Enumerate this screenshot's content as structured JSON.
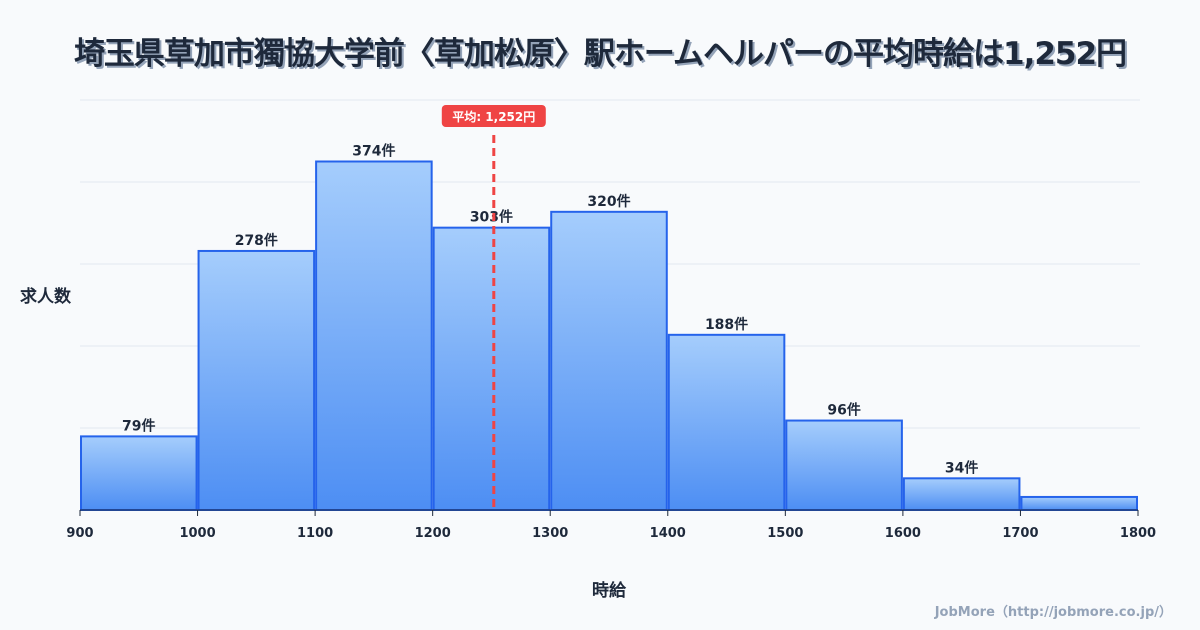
{
  "title": "埼玉県草加市獨協大学前〈草加松原〉駅ホームヘルパーの平均時給は1,252円",
  "credit": "JobMore（http://jobmore.co.jp/）",
  "chart_data": {
    "type": "bar",
    "title": "埼玉県草加市獨協大学前〈草加松原〉駅ホームヘルパーの平均時給は1,252円",
    "xlabel": "時給",
    "ylabel": "求人数",
    "bins": [
      900,
      1000,
      1100,
      1200,
      1300,
      1400,
      1500,
      1600,
      1700,
      1800
    ],
    "x_ticks": [
      "900",
      "1000",
      "1100",
      "1200",
      "1300",
      "1400",
      "1500",
      "1600",
      "1700",
      "1800"
    ],
    "values": [
      79,
      278,
      374,
      303,
      320,
      188,
      96,
      34,
      14
    ],
    "labels": [
      "79件",
      "278件",
      "374件",
      "303件",
      "320件",
      "188件",
      "96件",
      "34件",
      ""
    ],
    "ylim": [
      0,
      440
    ],
    "grid": true,
    "mean": {
      "value": 1252,
      "label": "平均: 1,252円"
    },
    "colors": {
      "bar_top": "#a5cdfc",
      "bar_bottom": "#4d8ef3",
      "bar_stroke": "#2563eb",
      "mean": "#ef4444"
    }
  }
}
